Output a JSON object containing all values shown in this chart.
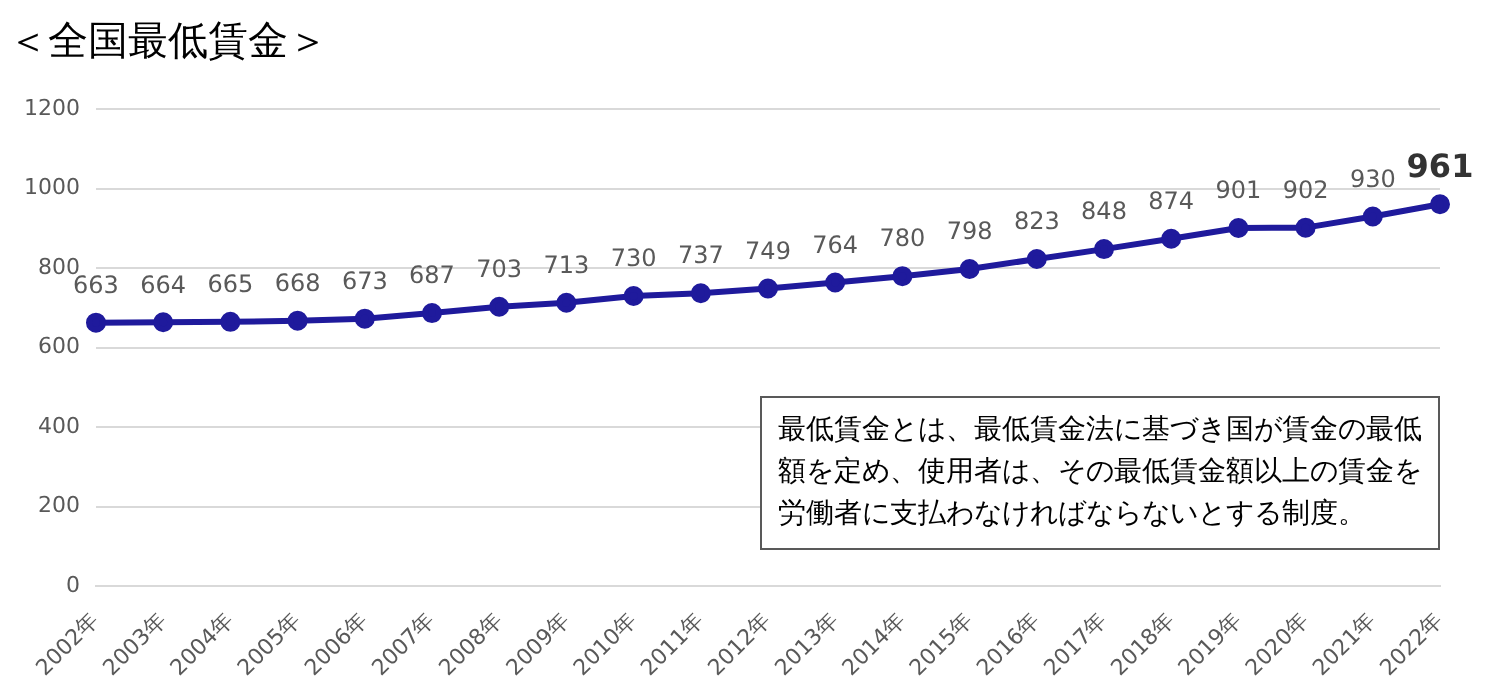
{
  "chart_data": {
    "type": "line",
    "title": "＜全国最低賃金＞",
    "categories": [
      "2002年",
      "2003年",
      "2004年",
      "2005年",
      "2006年",
      "2007年",
      "2008年",
      "2009年",
      "2010年",
      "2011年",
      "2012年",
      "2013年",
      "2014年",
      "2015年",
      "2016年",
      "2017年",
      "2018年",
      "2019年",
      "2020年",
      "2021年",
      "2022年"
    ],
    "series": [
      {
        "color": "#1f1a9c",
        "values": [
          663,
          664,
          665,
          668,
          673,
          687,
          703,
          713,
          730,
          737,
          749,
          764,
          780,
          798,
          823,
          848,
          874,
          901,
          902,
          930,
          961
        ]
      }
    ],
    "ylim": [
      0,
      1200
    ],
    "yticks": [
      0,
      200,
      400,
      600,
      800,
      1000,
      1200
    ],
    "grid": "y",
    "marker": "circle",
    "line_style": "solid",
    "data_labels": true,
    "legend": false,
    "annotations": [
      "最低賃金とは、最低賃金法に基づき国が賃金の最低額を定め、使用者は、その最低賃金額以上の賃金を労働者に支払わなければならないとする制度。"
    ]
  }
}
